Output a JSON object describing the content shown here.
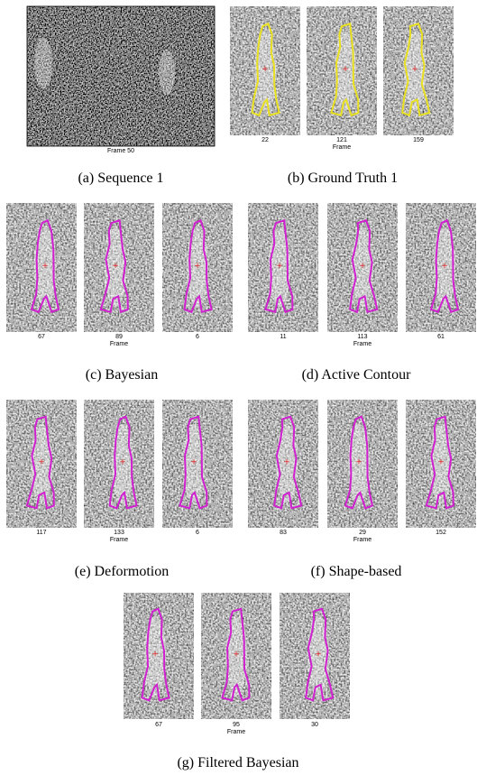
{
  "panels": [
    {
      "caption": "(a) Sequence 1",
      "frame_label": "Frame 50"
    },
    {
      "caption": "(b) Ground Truth 1",
      "frames": [
        22,
        121,
        159
      ],
      "axis_label": "Frame"
    },
    {
      "caption": "(c) Bayesian",
      "frames": [
        67,
        89,
        6
      ],
      "axis_label": "Frame"
    },
    {
      "caption": "(d) Active Contour",
      "frames": [
        11,
        113,
        61
      ],
      "axis_label": "Frame"
    },
    {
      "caption": "(e) Deformotion",
      "frames": [
        117,
        133,
        6
      ],
      "axis_label": "Frame"
    },
    {
      "caption": "(f) Shape-based",
      "frames": [
        83,
        29,
        152
      ],
      "axis_label": "Frame"
    },
    {
      "caption": "(g) Filtered Bayesian",
      "frames": [
        67,
        95,
        30
      ],
      "axis_label": "Frame"
    }
  ]
}
